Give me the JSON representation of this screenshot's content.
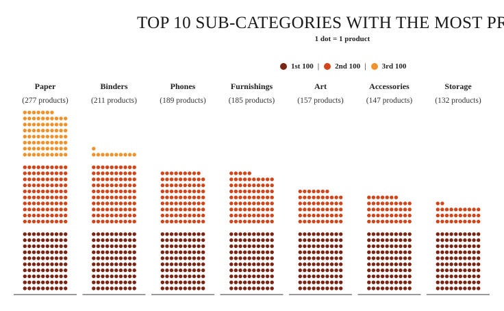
{
  "chart_data": {
    "type": "waffle",
    "title": "TOP 10 SUB-CATEGORIES WITH THE MOST PR",
    "subtitle": "1 dot = 1 product",
    "legend": [
      {
        "label": "1st 100",
        "color": "#7a2414"
      },
      {
        "label": "2nd 100",
        "color": "#d0461a"
      },
      {
        "label": "3rd 100",
        "color": "#f0922c"
      }
    ],
    "categories": [
      "Paper",
      "Binders",
      "Phones",
      "Furnishings",
      "Art",
      "Accessories",
      "Storage"
    ],
    "count_labels": [
      "(277 products)",
      "(211 products)",
      "(189 products)",
      "(185 products)",
      "(157 products)",
      "(147 products)",
      "(132 products)"
    ],
    "values": [
      277,
      211,
      189,
      185,
      157,
      147,
      132
    ],
    "dot_unit": 1,
    "block_size": 100
  }
}
